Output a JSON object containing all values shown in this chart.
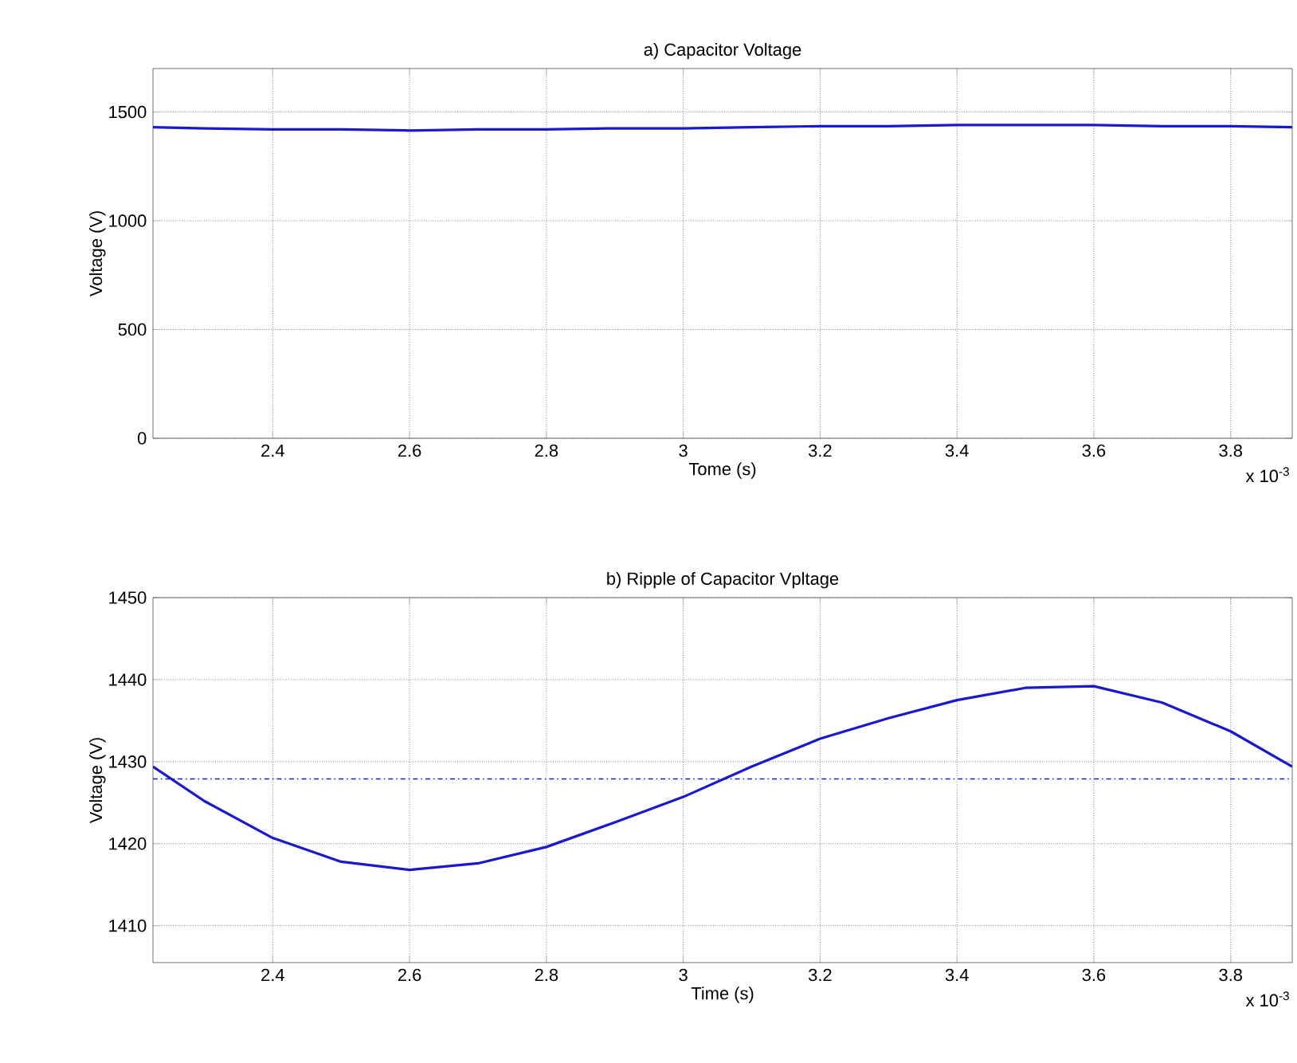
{
  "chart_data": [
    {
      "type": "line",
      "title": "a) Capacitor Voltage",
      "xlabel": "Tome (s)",
      "ylabel": "Voltage (V)",
      "x": [
        2.225,
        2.3,
        2.4,
        2.5,
        2.6,
        2.7,
        2.8,
        2.9,
        3.0,
        3.1,
        3.2,
        3.3,
        3.4,
        3.5,
        3.6,
        3.7,
        3.8,
        3.89
      ],
      "series": [
        {
          "color": "#1a1acc",
          "values": [
            1430,
            1425,
            1420,
            1420,
            1415,
            1420,
            1420,
            1425,
            1425,
            1430,
            1435,
            1435,
            1440,
            1440,
            1440,
            1435,
            1435,
            1430
          ]
        }
      ],
      "xlim": [
        2.225,
        3.89
      ],
      "ylim": [
        0,
        1700
      ],
      "xticks": [
        2.4,
        2.6,
        2.8,
        3,
        3.2,
        3.4,
        3.6,
        3.8
      ],
      "yticks": [
        0,
        500,
        1000,
        1500
      ],
      "grid": true,
      "line_style": "solid",
      "annotations": [
        "x 10$^{-3}$"
      ]
    },
    {
      "type": "line",
      "title": "b) Ripple of Capacitor Vpltage",
      "xlabel": "Time (s)",
      "ylabel": "Voltage (V)",
      "x": [
        2.225,
        2.3,
        2.4,
        2.5,
        2.6,
        2.7,
        2.8,
        2.9,
        3.0,
        3.1,
        3.2,
        3.3,
        3.4,
        3.5,
        3.6,
        3.7,
        3.8,
        3.89
      ],
      "series": [
        {
          "color": "#1a1acc",
          "values": [
            1429.4,
            1425.2,
            1420.7,
            1417.8,
            1416.8,
            1417.6,
            1419.6,
            1422.6,
            1425.7,
            1429.4,
            1432.8,
            1435.3,
            1437.5,
            1439.0,
            1439.2,
            1437.2,
            1433.7,
            1429.4
          ]
        }
      ],
      "ref_lines": [
        {
          "axis": "y",
          "value": 1427.9,
          "color": "#1a1acc",
          "line_style": "dashdot"
        }
      ],
      "xlim": [
        2.225,
        3.89
      ],
      "ylim": [
        1405.5,
        1450
      ],
      "xticks": [
        2.4,
        2.6,
        2.8,
        3,
        3.2,
        3.4,
        3.6,
        3.8
      ],
      "yticks": [
        1410,
        1420,
        1430,
        1440,
        1450
      ],
      "grid": true,
      "line_style": "solid",
      "annotations": [
        "x 10$^{-3}$"
      ]
    }
  ]
}
